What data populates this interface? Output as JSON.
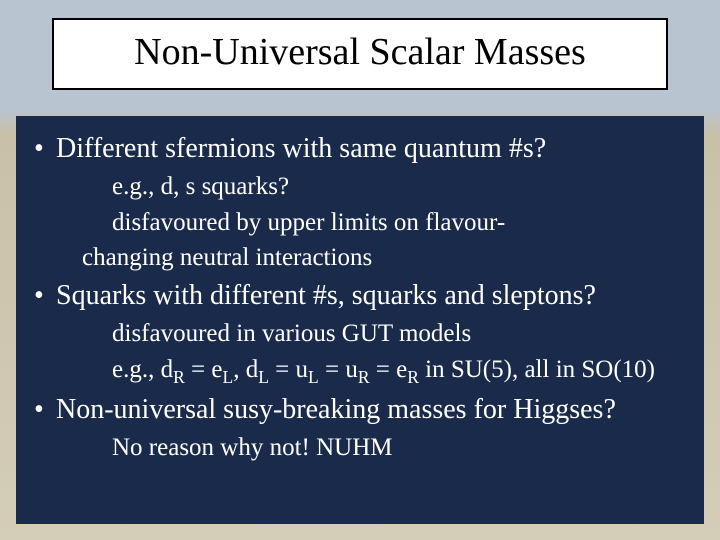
{
  "title": "Non-Universal Scalar Masses",
  "bullets": [
    {
      "text": "Different sfermions with same quantum #s?",
      "subs": [
        "e.g., d, s squarks?",
        "disfavoured by upper limits on flavour-",
        "__indent__changing neutral interactions"
      ]
    },
    {
      "text": "Squarks with different #s, squarks and sleptons?",
      "subs": [
        "disfavoured in various GUT models",
        "__html__e.g., d<sub>R</sub> = e<sub>L</sub>, d<sub>L</sub> = u<sub>L</sub> = u<sub>R</sub> = e<sub>R</sub> in SU(5), all in SO(10)"
      ]
    },
    {
      "text": "Non-universal susy-breaking masses for Higgses?",
      "subs": [
        "No reason why not! NUHM"
      ]
    }
  ],
  "colors": {
    "title_bg": "#ffffff",
    "title_border": "#000000",
    "body_bg": "#1a2a4a",
    "text": "#ffffff"
  }
}
